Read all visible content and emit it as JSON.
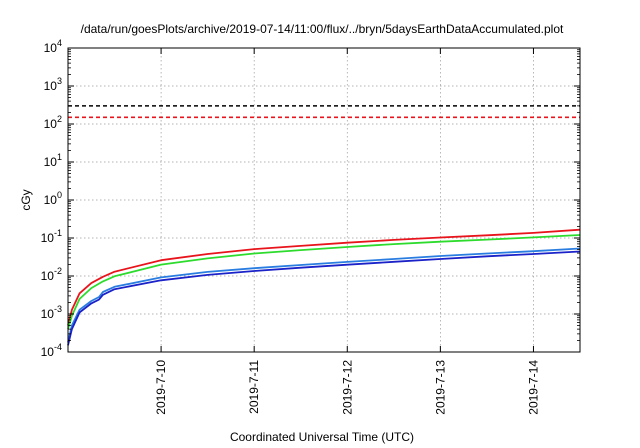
{
  "chart_data": {
    "type": "line",
    "title": "/data/run/goesPlots/archive/2019-07-14/11:00/flux/../bryn/5daysEarthDataAccumulated.plot",
    "xlabel": "Coordinated Universal Time (UTC)",
    "ylabel": "cGy",
    "y_scale": "log",
    "ylim": [
      0.0001,
      10000
    ],
    "xlim": [
      "2019-07-09 00:00",
      "2019-07-14 12:00"
    ],
    "x_ticks": [
      "2019-7-10",
      "2019-7-11",
      "2019-7-12",
      "2019-7-13",
      "2019-7-14"
    ],
    "y_ticks": [
      {
        "base": "10",
        "exp": "-4"
      },
      {
        "base": "10",
        "exp": "-3"
      },
      {
        "base": "10",
        "exp": "-2"
      },
      {
        "base": "10",
        "exp": "-1"
      },
      {
        "base": "10",
        "exp": "0"
      },
      {
        "base": "10",
        "exp": "1"
      },
      {
        "base": "10",
        "exp": "2"
      },
      {
        "base": "10",
        "exp": "3"
      },
      {
        "base": "10",
        "exp": "4"
      }
    ],
    "grid": true,
    "thresholds": [
      {
        "value": 300,
        "color": "#000000",
        "style": "dashed"
      },
      {
        "value": 150,
        "color": "#e8141c",
        "style": "dashed"
      }
    ],
    "series": [
      {
        "color": "#e8141c",
        "x": [
          "2019-07-09 00:00",
          "2019-07-09 01:00",
          "2019-07-09 03:00",
          "2019-07-09 06:00",
          "2019-07-09 09:00",
          "2019-07-09 12:00",
          "2019-07-10 00:00",
          "2019-07-10 12:00",
          "2019-07-11 00:00",
          "2019-07-11 12:00",
          "2019-07-12 00:00",
          "2019-07-12 12:00",
          "2019-07-13 00:00",
          "2019-07-13 12:00",
          "2019-07-14 00:00",
          "2019-07-14 12:00"
        ],
        "y": [
          0.0005,
          0.0013,
          0.0035,
          0.0065,
          0.0095,
          0.013,
          0.026,
          0.038,
          0.051,
          0.062,
          0.075,
          0.089,
          0.103,
          0.118,
          0.136,
          0.165
        ]
      },
      {
        "color": "#2ddb2d",
        "x": [
          "2019-07-09 00:00",
          "2019-07-09 01:00",
          "2019-07-09 03:00",
          "2019-07-09 06:00",
          "2019-07-09 09:00",
          "2019-07-09 12:00",
          "2019-07-10 00:00",
          "2019-07-10 12:00",
          "2019-07-11 00:00",
          "2019-07-11 12:00",
          "2019-07-12 00:00",
          "2019-07-12 12:00",
          "2019-07-13 00:00",
          "2019-07-13 12:00",
          "2019-07-14 00:00",
          "2019-07-14 12:00"
        ],
        "y": [
          0.0004,
          0.0009,
          0.0025,
          0.0048,
          0.0072,
          0.0098,
          0.02,
          0.029,
          0.039,
          0.048,
          0.058,
          0.069,
          0.08,
          0.091,
          0.104,
          0.12
        ]
      },
      {
        "color": "#2a7de0",
        "x": [
          "2019-07-09 00:00",
          "2019-07-09 01:00",
          "2019-07-09 03:00",
          "2019-07-09 06:00",
          "2019-07-09 08:00",
          "2019-07-09 09:00",
          "2019-07-09 12:00",
          "2019-07-10 00:00",
          "2019-07-10 12:00",
          "2019-07-11 00:00",
          "2019-07-11 12:00",
          "2019-07-12 00:00",
          "2019-07-12 12:00",
          "2019-07-13 00:00",
          "2019-07-13 12:00",
          "2019-07-14 00:00",
          "2019-07-14 12:00"
        ],
        "y": [
          0.00018,
          0.0005,
          0.0013,
          0.0022,
          0.0028,
          0.0038,
          0.0052,
          0.0092,
          0.0128,
          0.016,
          0.0195,
          0.0235,
          0.028,
          0.0335,
          0.039,
          0.045,
          0.053
        ]
      },
      {
        "color": "#1a22c8",
        "x": [
          "2019-07-09 00:00",
          "2019-07-09 01:00",
          "2019-07-09 03:00",
          "2019-07-09 06:00",
          "2019-07-09 08:00",
          "2019-07-09 09:00",
          "2019-07-09 12:00",
          "2019-07-10 00:00",
          "2019-07-10 12:00",
          "2019-07-11 00:00",
          "2019-07-11 12:00",
          "2019-07-12 00:00",
          "2019-07-12 12:00",
          "2019-07-13 00:00",
          "2019-07-13 12:00",
          "2019-07-14 00:00",
          "2019-07-14 12:00"
        ],
        "y": [
          0.00015,
          0.0004,
          0.0011,
          0.0019,
          0.0024,
          0.0032,
          0.0045,
          0.0077,
          0.0107,
          0.0135,
          0.0165,
          0.0198,
          0.0236,
          0.028,
          0.033,
          0.038,
          0.044
        ]
      }
    ]
  }
}
